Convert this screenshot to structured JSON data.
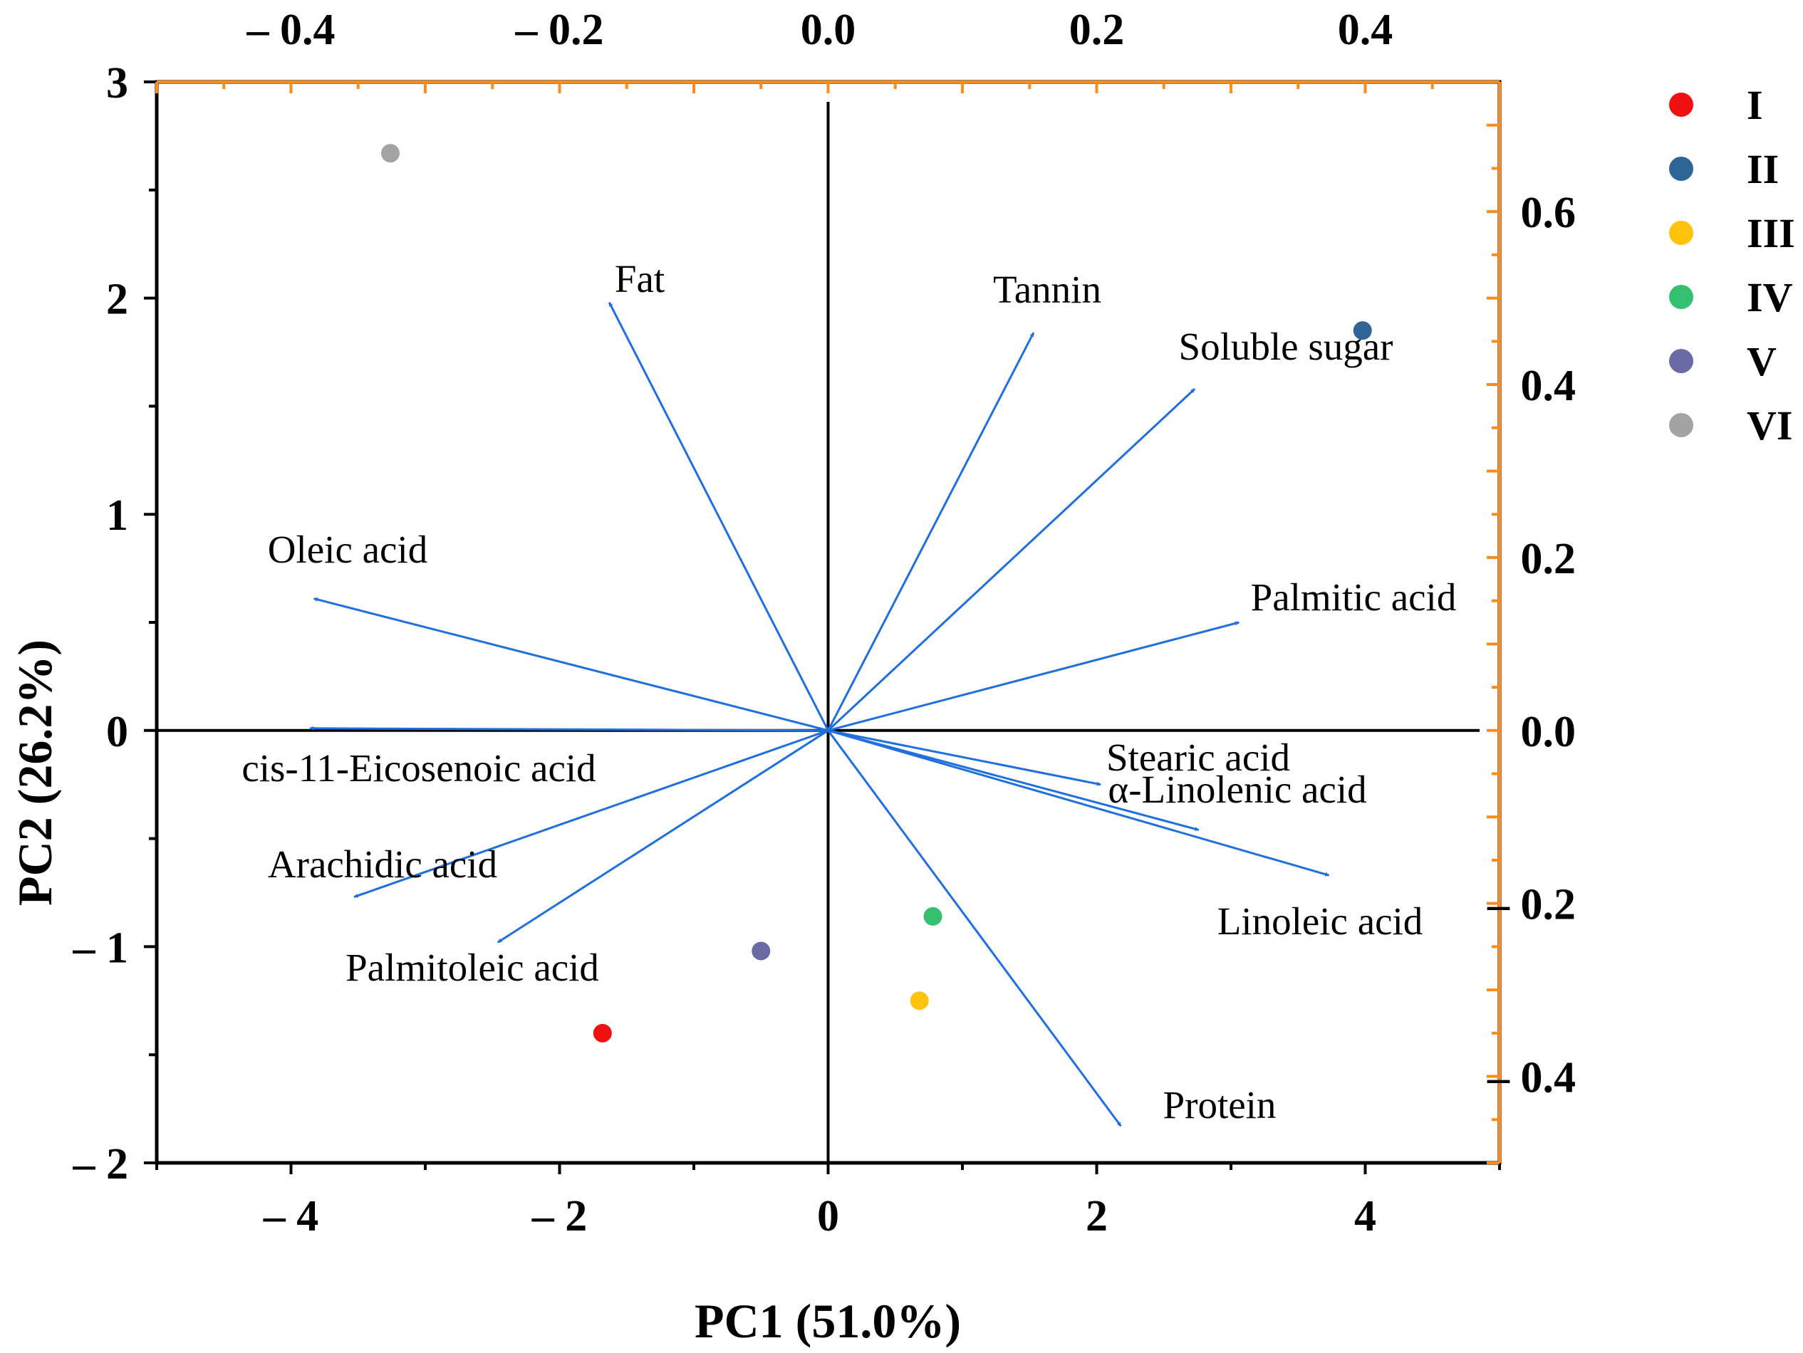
{
  "chart_data": {
    "type": "scatter",
    "subtype": "pca-biplot",
    "xlabel": "PC1 (51.0%)",
    "ylabel": "PC2 (26.2%)",
    "xlim": [
      -5,
      5
    ],
    "ylim": [
      -2,
      3
    ],
    "x_ticks": [
      {
        "value": -4,
        "label": "– 4"
      },
      {
        "value": -2,
        "label": "– 2"
      },
      {
        "value": 0,
        "label": "0"
      },
      {
        "value": 2,
        "label": "2"
      },
      {
        "value": 4,
        "label": "4"
      }
    ],
    "y_ticks": [
      {
        "value": -2,
        "label": "– 2"
      },
      {
        "value": -1,
        "label": "– 1"
      },
      {
        "value": 0,
        "label": "0"
      },
      {
        "value": 1,
        "label": "1"
      },
      {
        "value": 2,
        "label": "2"
      },
      {
        "value": 3,
        "label": "3"
      }
    ],
    "top_axis": {
      "lim": [
        -0.5,
        0.5
      ],
      "ticks": [
        {
          "value": -0.4,
          "label": "– 0.4"
        },
        {
          "value": -0.2,
          "label": "– 0.2"
        },
        {
          "value": 0.0,
          "label": "0.0"
        },
        {
          "value": 0.2,
          "label": "0.2"
        },
        {
          "value": 0.4,
          "label": "0.4"
        }
      ],
      "color": "#ff8c1a"
    },
    "right_axis": {
      "lim": [
        -0.5,
        0.75
      ],
      "ticks": [
        {
          "value": -0.4,
          "label": "– 0.4"
        },
        {
          "value": -0.2,
          "label": "– 0.2"
        },
        {
          "value": 0.0,
          "label": "0.0"
        },
        {
          "value": 0.2,
          "label": "0.2"
        },
        {
          "value": 0.4,
          "label": "0.4"
        },
        {
          "value": 0.6,
          "label": "0.6"
        }
      ],
      "color": "#ff8c1a"
    },
    "series": [
      {
        "name": "I",
        "color": "#f01010",
        "x": -1.68,
        "y": -1.4
      },
      {
        "name": "II",
        "color": "#2e6496",
        "x": 3.98,
        "y": 1.85
      },
      {
        "name": "III",
        "color": "#ffc20e",
        "x": 0.68,
        "y": -1.25
      },
      {
        "name": "IV",
        "color": "#34c06e",
        "x": 0.78,
        "y": -0.86
      },
      {
        "name": "V",
        "color": "#6a6aa4",
        "x": -0.5,
        "y": -1.02
      },
      {
        "name": "VI",
        "color": "#a3a3a3",
        "x": -3.26,
        "y": 2.67
      }
    ],
    "loadings_color": "#1f6fe0",
    "loadings": [
      {
        "name": "Fat",
        "x": -1.63,
        "y": 1.98
      },
      {
        "name": "Tannin",
        "x": 1.53,
        "y": 1.84
      },
      {
        "name": "Soluble sugar",
        "x": 2.73,
        "y": 1.58
      },
      {
        "name": "Oleic acid",
        "x": -3.83,
        "y": 0.61
      },
      {
        "name": "Palmitic acid",
        "x": 3.06,
        "y": 0.5
      },
      {
        "name": "cis-11-Eicosenoic acid",
        "x": -3.86,
        "y": 0.01
      },
      {
        "name": "Stearic acid",
        "x": 2.03,
        "y": -0.25
      },
      {
        "name": "α-Linolenic acid",
        "x": 2.76,
        "y": -0.46
      },
      {
        "name": "Linoleic acid",
        "x": 3.73,
        "y": -0.67
      },
      {
        "name": "Arachidic acid",
        "x": -3.53,
        "y": -0.77
      },
      {
        "name": "Palmitoleic acid",
        "x": -2.46,
        "y": -0.98
      },
      {
        "name": "Protein",
        "x": 2.18,
        "y": -1.83
      }
    ]
  }
}
